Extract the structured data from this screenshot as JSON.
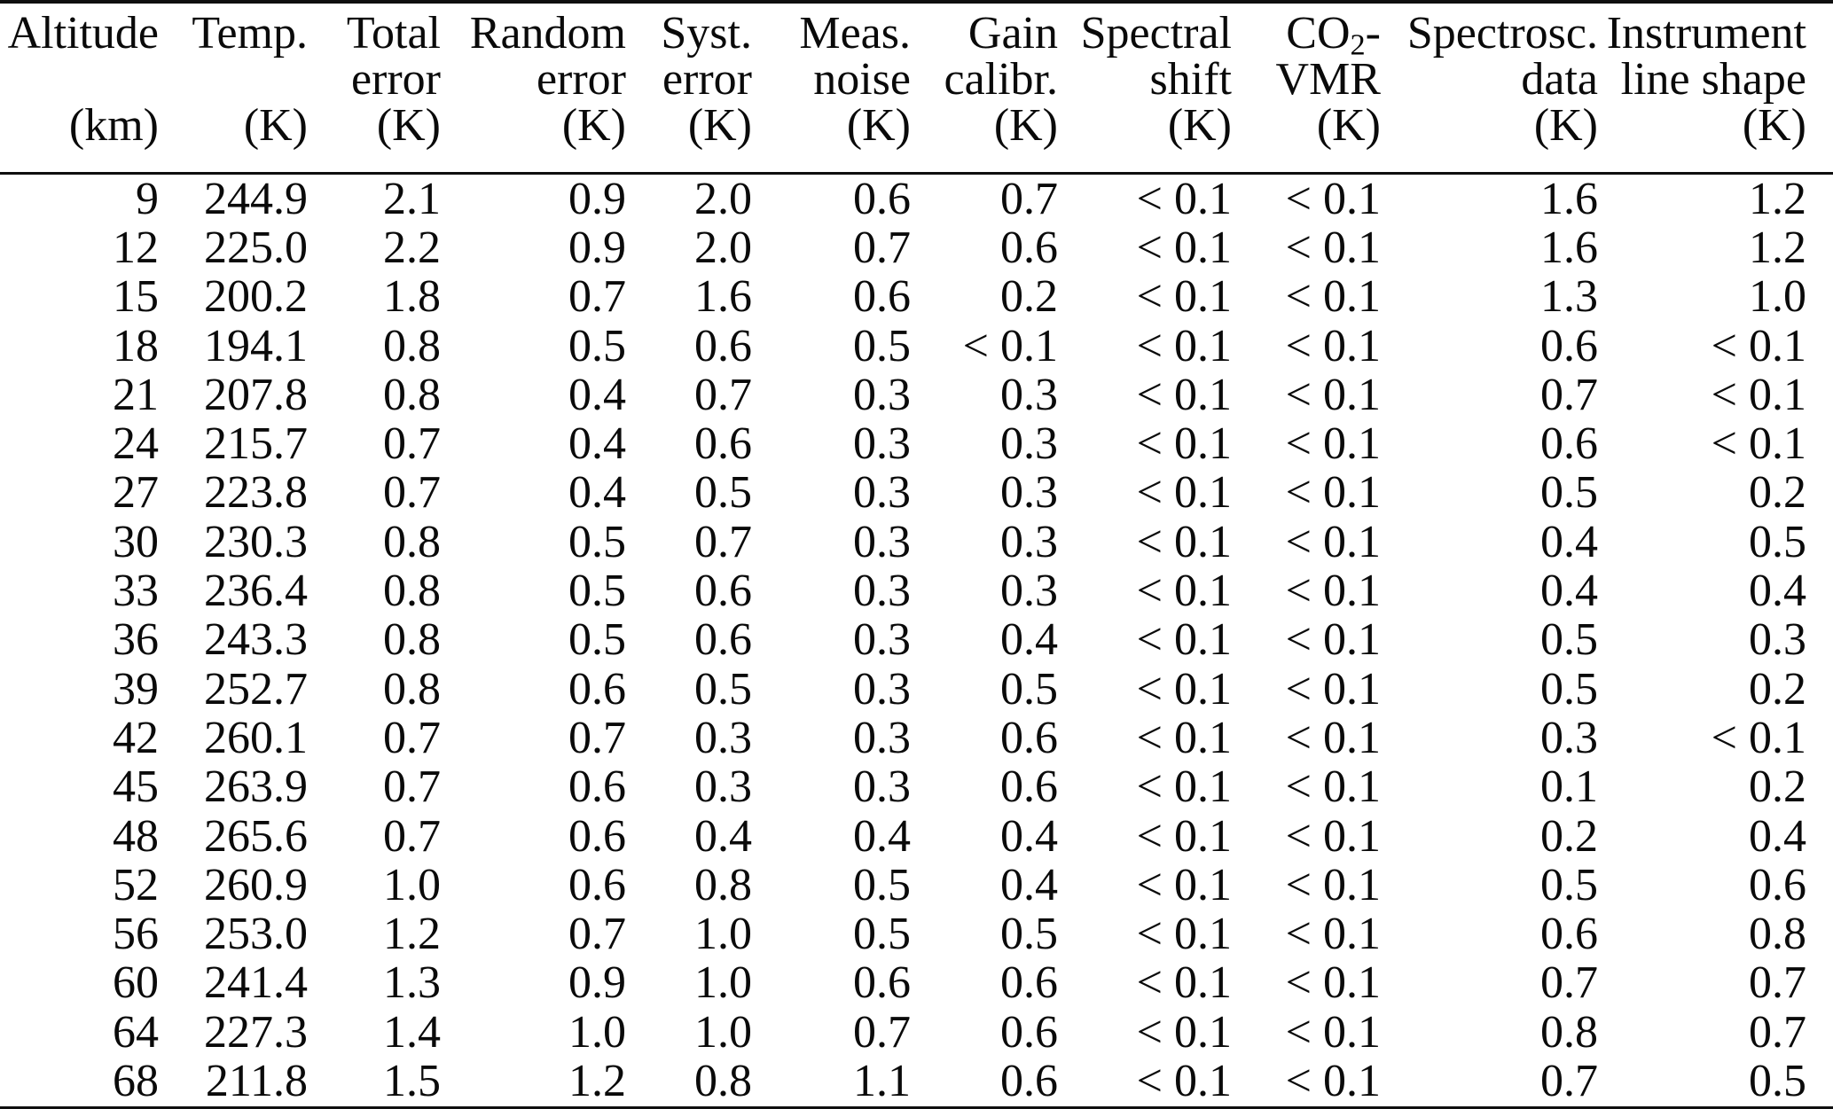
{
  "table": {
    "columns": [
      {
        "id": "altitude",
        "line1": "Altitude",
        "line2": "",
        "unit": "(km)"
      },
      {
        "id": "temp",
        "line1": "Temp.",
        "line2": "",
        "unit": "(K)"
      },
      {
        "id": "total-error",
        "line1": "Total",
        "line2": "error",
        "unit": "(K)"
      },
      {
        "id": "random-error",
        "line1": "Random",
        "line2": "error",
        "unit": "(K)"
      },
      {
        "id": "syst-error",
        "line1": "Syst.",
        "line2": "error",
        "unit": "(K)"
      },
      {
        "id": "meas-noise",
        "line1": "Meas.",
        "line2": "noise",
        "unit": "(K)"
      },
      {
        "id": "gain-calibr",
        "line1": "Gain",
        "line2": "calibr.",
        "unit": "(K)"
      },
      {
        "id": "spectral-shift",
        "line1": "Spectral",
        "line2": "shift",
        "unit": "(K)"
      },
      {
        "id": "co2-vmr",
        "line1_parts": {
          "pre": "CO",
          "sub": "2",
          "post": "-"
        },
        "line2": "VMR",
        "unit": "(K)"
      },
      {
        "id": "spectrosc-data",
        "line1": "Spectrosc.",
        "line2": "data",
        "unit": "(K)"
      },
      {
        "id": "instrument-line-shape",
        "line1": "Instrument",
        "line2": "line shape",
        "unit": "(K)"
      }
    ],
    "rows": [
      [
        "9",
        "244.9",
        "2.1",
        "0.9",
        "2.0",
        "0.6",
        "0.7",
        "< 0.1",
        "< 0.1",
        "1.6",
        "1.2"
      ],
      [
        "12",
        "225.0",
        "2.2",
        "0.9",
        "2.0",
        "0.7",
        "0.6",
        "< 0.1",
        "< 0.1",
        "1.6",
        "1.2"
      ],
      [
        "15",
        "200.2",
        "1.8",
        "0.7",
        "1.6",
        "0.6",
        "0.2",
        "< 0.1",
        "< 0.1",
        "1.3",
        "1.0"
      ],
      [
        "18",
        "194.1",
        "0.8",
        "0.5",
        "0.6",
        "0.5",
        "< 0.1",
        "< 0.1",
        "< 0.1",
        "0.6",
        "< 0.1"
      ],
      [
        "21",
        "207.8",
        "0.8",
        "0.4",
        "0.7",
        "0.3",
        "0.3",
        "< 0.1",
        "< 0.1",
        "0.7",
        "< 0.1"
      ],
      [
        "24",
        "215.7",
        "0.7",
        "0.4",
        "0.6",
        "0.3",
        "0.3",
        "< 0.1",
        "< 0.1",
        "0.6",
        "< 0.1"
      ],
      [
        "27",
        "223.8",
        "0.7",
        "0.4",
        "0.5",
        "0.3",
        "0.3",
        "< 0.1",
        "< 0.1",
        "0.5",
        "0.2"
      ],
      [
        "30",
        "230.3",
        "0.8",
        "0.5",
        "0.7",
        "0.3",
        "0.3",
        "< 0.1",
        "< 0.1",
        "0.4",
        "0.5"
      ],
      [
        "33",
        "236.4",
        "0.8",
        "0.5",
        "0.6",
        "0.3",
        "0.3",
        "< 0.1",
        "< 0.1",
        "0.4",
        "0.4"
      ],
      [
        "36",
        "243.3",
        "0.8",
        "0.5",
        "0.6",
        "0.3",
        "0.4",
        "< 0.1",
        "< 0.1",
        "0.5",
        "0.3"
      ],
      [
        "39",
        "252.7",
        "0.8",
        "0.6",
        "0.5",
        "0.3",
        "0.5",
        "< 0.1",
        "< 0.1",
        "0.5",
        "0.2"
      ],
      [
        "42",
        "260.1",
        "0.7",
        "0.7",
        "0.3",
        "0.3",
        "0.6",
        "< 0.1",
        "< 0.1",
        "0.3",
        "< 0.1"
      ],
      [
        "45",
        "263.9",
        "0.7",
        "0.6",
        "0.3",
        "0.3",
        "0.6",
        "< 0.1",
        "< 0.1",
        "0.1",
        "0.2"
      ],
      [
        "48",
        "265.6",
        "0.7",
        "0.6",
        "0.4",
        "0.4",
        "0.4",
        "< 0.1",
        "< 0.1",
        "0.2",
        "0.4"
      ],
      [
        "52",
        "260.9",
        "1.0",
        "0.6",
        "0.8",
        "0.5",
        "0.4",
        "< 0.1",
        "< 0.1",
        "0.5",
        "0.6"
      ],
      [
        "56",
        "253.0",
        "1.2",
        "0.7",
        "1.0",
        "0.5",
        "0.5",
        "< 0.1",
        "< 0.1",
        "0.6",
        "0.8"
      ],
      [
        "60",
        "241.4",
        "1.3",
        "0.9",
        "1.0",
        "0.6",
        "0.6",
        "< 0.1",
        "< 0.1",
        "0.7",
        "0.7"
      ],
      [
        "64",
        "227.3",
        "1.4",
        "1.0",
        "1.0",
        "0.7",
        "0.6",
        "< 0.1",
        "< 0.1",
        "0.8",
        "0.7"
      ],
      [
        "68",
        "211.8",
        "1.5",
        "1.2",
        "0.8",
        "1.1",
        "0.6",
        "< 0.1",
        "< 0.1",
        "0.7",
        "0.5"
      ]
    ]
  }
}
